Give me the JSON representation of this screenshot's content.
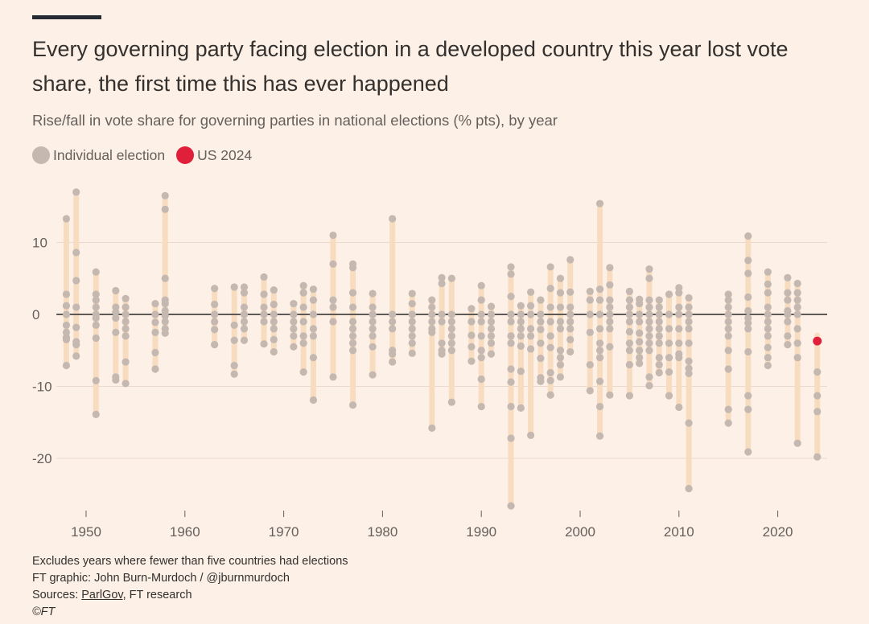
{
  "title": "Every governing party facing election in a developed country this year lost vote share, the first time this has ever happened",
  "subtitle": "Rise/fall in vote share for governing parties in national elections (% pts), by year",
  "legend": [
    {
      "label": "Individual election",
      "color": "#c4b8b0"
    },
    {
      "label": "US 2024",
      "color": "#e0203a"
    }
  ],
  "footer": {
    "note": "Excludes years where fewer than five countries had elections",
    "credit": "FT graphic: John Burn-Murdoch / @jburnmurdoch",
    "sources_prefix": "Sources: ",
    "sources_link": "ParlGov",
    "sources_rest": ", FT research",
    "copyright": "©FT"
  },
  "colors": {
    "background": "#fdf0e6",
    "range_bar": "#f8dcc0",
    "dot": "#c4b8b0",
    "highlight": "#e0203a",
    "zero_line": "#5f5955",
    "grid": "#ead9cc"
  },
  "chart_data": {
    "type": "scatter",
    "title": "Every governing party facing election in a developed country this year lost vote share, the first time this has ever happened",
    "subtitle": "Rise/fall in vote share for governing parties in national elections (% pts), by year",
    "xlabel": "",
    "ylabel": "",
    "xlim": [
      1947,
      2025
    ],
    "ylim": [
      -27.5,
      18
    ],
    "xticks": [
      1950,
      1960,
      1970,
      1980,
      1990,
      2000,
      2010,
      2020
    ],
    "yticks": [
      10,
      0,
      -10,
      -20
    ],
    "grid": true,
    "legend_position": "top-left",
    "highlight": {
      "label": "US 2024",
      "year": 2024,
      "value": -3.7
    },
    "years": [
      {
        "year": 1948,
        "values": [
          13.3,
          2.8,
          1.2,
          0,
          -1.5,
          -2.5,
          -3.2,
          -3.5,
          -7.1
        ]
      },
      {
        "year": 1949,
        "values": [
          17,
          8.6,
          4.7,
          1,
          -1.8,
          -3.8,
          -4.2,
          -5.8
        ]
      },
      {
        "year": 1951,
        "values": [
          5.9,
          2.8,
          2,
          1,
          0,
          -0.5,
          -1.5,
          -3.3,
          -9.2,
          -13.9
        ]
      },
      {
        "year": 1953,
        "values": [
          3.3,
          1,
          0.3,
          -0.5,
          -2.5,
          -8.7,
          -9.1
        ]
      },
      {
        "year": 1954,
        "values": [
          2.2,
          1,
          0,
          -1,
          -2,
          -3,
          -6.6,
          -9.6
        ]
      },
      {
        "year": 1957,
        "values": [
          1.5,
          0,
          -1.1,
          -2.5,
          -5.3,
          -7.6
        ]
      },
      {
        "year": 1958,
        "values": [
          16.5,
          14.6,
          5,
          2,
          1.5,
          0.5,
          -0.2,
          -1,
          -2,
          -2.6
        ]
      },
      {
        "year": 1963,
        "values": [
          3.6,
          1.4,
          0,
          -1,
          -2.1,
          -4.2
        ]
      },
      {
        "year": 1965,
        "values": [
          3.8,
          -1.5,
          -3.6,
          -7.1,
          -8.3
        ]
      },
      {
        "year": 1966,
        "values": [
          3.8,
          3,
          1,
          0,
          -1,
          -2,
          -3.6
        ]
      },
      {
        "year": 1968,
        "values": [
          5.2,
          2.8,
          1,
          0,
          -1,
          -4.1
        ]
      },
      {
        "year": 1969,
        "values": [
          3.4,
          1.4,
          0,
          -1,
          -2,
          -3.5,
          -5.2
        ]
      },
      {
        "year": 1971,
        "values": [
          1.5,
          0,
          -1,
          -2,
          -3,
          -4.5
        ]
      },
      {
        "year": 1972,
        "values": [
          4,
          3,
          1,
          -1,
          -3,
          -4,
          -8
        ]
      },
      {
        "year": 1973,
        "values": [
          3.5,
          2,
          0,
          -2,
          -3,
          -6,
          -11.9
        ]
      },
      {
        "year": 1975,
        "values": [
          11,
          7,
          2,
          1,
          -1,
          -8.7
        ]
      },
      {
        "year": 1977,
        "values": [
          7,
          6.5,
          3,
          1,
          -1,
          -2,
          -3,
          -4,
          -5,
          -12.6
        ]
      },
      {
        "year": 1979,
        "values": [
          2.9,
          1,
          0,
          -1,
          -2,
          -3,
          -4.5,
          -8.4
        ]
      },
      {
        "year": 1981,
        "values": [
          13.3,
          0,
          -1,
          -2,
          -5,
          -5.5,
          -6.6
        ]
      },
      {
        "year": 1983,
        "values": [
          2.9,
          1.5,
          0,
          -1,
          -2,
          -3,
          -4,
          -5.4
        ]
      },
      {
        "year": 1985,
        "values": [
          2,
          1,
          0,
          -1,
          -2,
          -2.5,
          -15.8
        ]
      },
      {
        "year": 1986,
        "values": [
          5.1,
          4.3,
          0,
          -1,
          -4,
          -5,
          -5.5
        ]
      },
      {
        "year": 1987,
        "values": [
          5,
          0,
          -1,
          -2,
          -3,
          -4,
          -5,
          -12.2
        ]
      },
      {
        "year": 1989,
        "values": [
          0.8,
          -1,
          -2.9,
          -4.5,
          -6.5
        ]
      },
      {
        "year": 1990,
        "values": [
          4,
          2,
          0,
          -1,
          -3,
          -5,
          -6,
          -9,
          -12.8
        ]
      },
      {
        "year": 1991,
        "values": [
          1.1,
          0,
          -1,
          -2,
          -3,
          -4,
          -5.5
        ]
      },
      {
        "year": 1993,
        "values": [
          6.6,
          5.6,
          2.5,
          0,
          -1,
          -3,
          -4,
          -7.6,
          -9.4,
          -12.8,
          -17.2,
          -26.6
        ]
      },
      {
        "year": 1994,
        "values": [
          1.2,
          0,
          -1,
          -2,
          -3,
          -4.4,
          -7.9,
          -13
        ]
      },
      {
        "year": 1995,
        "values": [
          3.1,
          1.2,
          0,
          -2,
          -3,
          -4.8,
          -16.8
        ]
      },
      {
        "year": 1996,
        "values": [
          2,
          0,
          -1,
          -2.1,
          -4,
          -6.1,
          -8.8,
          -9.3
        ]
      },
      {
        "year": 1997,
        "values": [
          6.6,
          3.6,
          1,
          -1,
          -3,
          -4.6,
          -8.1,
          -9.2,
          -11.2
        ]
      },
      {
        "year": 1998,
        "values": [
          5,
          3,
          1,
          -1,
          -2,
          -5,
          -6,
          -7,
          -8.7
        ]
      },
      {
        "year": 1999,
        "values": [
          7.6,
          3.1,
          1,
          0,
          -1,
          -2,
          -3.5,
          -5.2
        ]
      },
      {
        "year": 2001,
        "values": [
          3.2,
          2,
          0,
          -2.5,
          -7,
          -10.6
        ]
      },
      {
        "year": 2002,
        "values": [
          15.4,
          3.5,
          2,
          0,
          -2,
          -4,
          -5,
          -6,
          -9.3,
          -12.8,
          -16.9
        ]
      },
      {
        "year": 2003,
        "values": [
          6.5,
          4.1,
          2,
          1,
          0,
          -1,
          -2,
          -4.5,
          -11.2
        ]
      },
      {
        "year": 2005,
        "values": [
          3.2,
          2,
          1,
          0,
          -1,
          -2.4,
          -4,
          -5,
          -7,
          -11.3
        ]
      },
      {
        "year": 2006,
        "values": [
          2.1,
          1.5,
          0,
          -1,
          -2.6,
          -3.8,
          -5,
          -6,
          -6.8
        ]
      },
      {
        "year": 2007,
        "values": [
          6.3,
          5,
          2,
          1,
          0,
          -1,
          -2,
          -3,
          -4,
          -5,
          -8.7,
          -9.9
        ]
      },
      {
        "year": 2008,
        "values": [
          2,
          1,
          0,
          -1,
          -2,
          -3,
          -4,
          -6,
          -7,
          -8.1
        ]
      },
      {
        "year": 2009,
        "values": [
          2.8,
          0,
          -2,
          -4,
          -6,
          -8,
          -11.3
        ]
      },
      {
        "year": 2010,
        "values": [
          3.7,
          3,
          1,
          0,
          -2,
          -4,
          -5.5,
          -6,
          -12.9
        ]
      },
      {
        "year": 2011,
        "values": [
          2.3,
          1,
          0,
          -1,
          -2,
          -4,
          -6.5,
          -7.5,
          -8.2,
          -15.1,
          -24.2
        ]
      },
      {
        "year": 2015,
        "values": [
          2.8,
          2,
          1,
          0,
          -1,
          -2,
          -3,
          -5,
          -7.6,
          -13.2,
          -15.1
        ]
      },
      {
        "year": 2017,
        "values": [
          10.9,
          7.5,
          5.7,
          2.4,
          0.5,
          -0.5,
          -1.2,
          -2,
          -5.2,
          -11.3,
          -13.2,
          -19.1
        ]
      },
      {
        "year": 2019,
        "values": [
          5.9,
          4.2,
          3,
          1,
          0,
          -1,
          -2,
          -3,
          -4.6,
          -6,
          -7.1
        ]
      },
      {
        "year": 2021,
        "values": [
          5.1,
          3,
          2,
          0.5,
          0,
          -1,
          -3,
          -4.2
        ]
      },
      {
        "year": 2022,
        "values": [
          4.3,
          3,
          2,
          1,
          0,
          -2,
          -4,
          -6,
          -17.9
        ]
      },
      {
        "year": 2024,
        "values": [
          -3.7,
          -8,
          -11.3,
          -13.5,
          -19.8
        ]
      }
    ]
  }
}
